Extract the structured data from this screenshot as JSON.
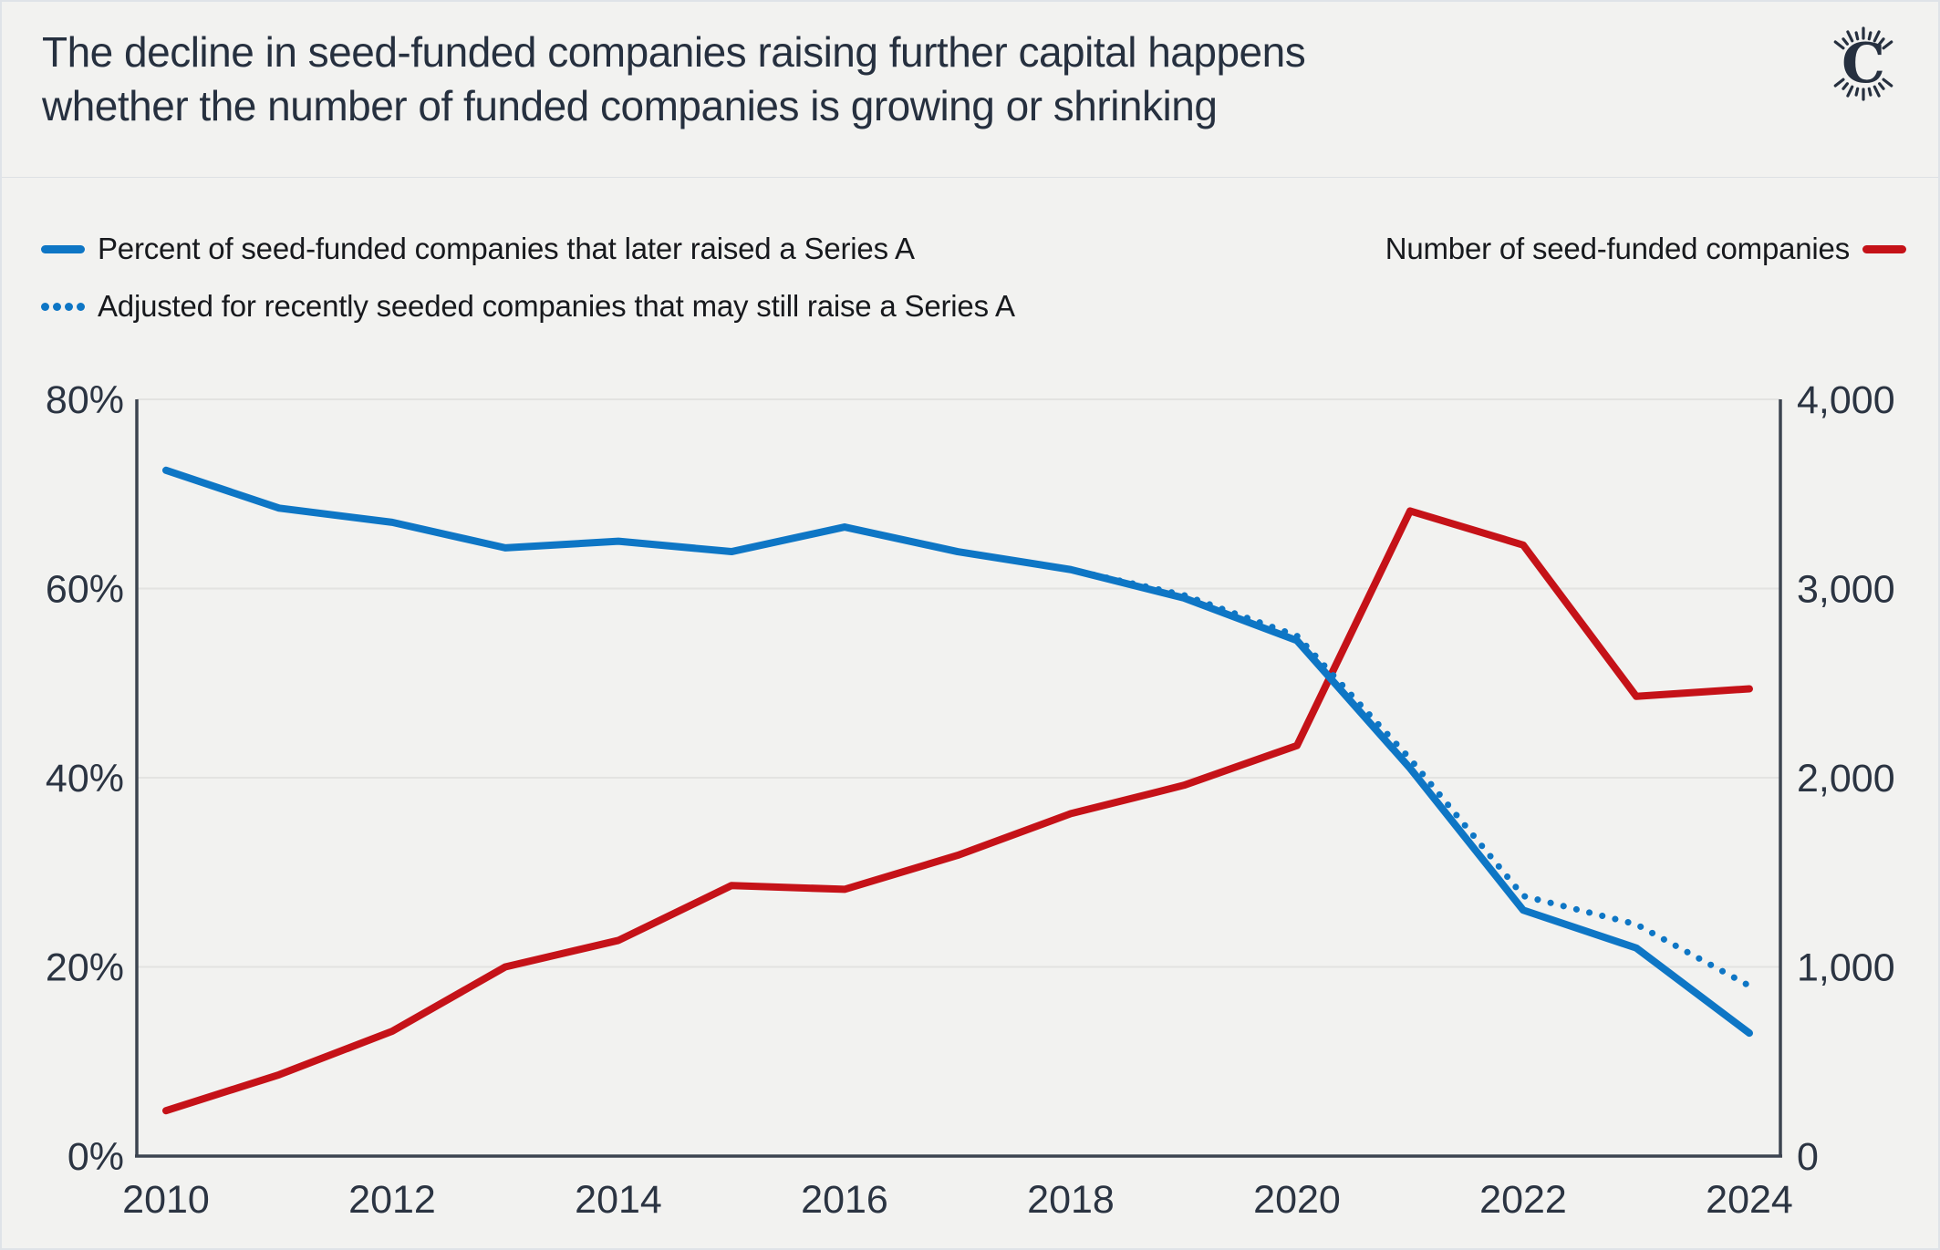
{
  "header": {
    "title_line1": "The decline in seed-funded companies raising further capital happens",
    "title_line2": "whether the number of funded companies is growing or shrinking",
    "logo_glyph": "C"
  },
  "legend": {
    "percent_label": "Percent of seed-funded companies that later raised a Series A",
    "adjusted_label": "Adjusted for recently seeded companies that may still raise a Series A",
    "count_label": "Number of seed-funded companies"
  },
  "colors": {
    "background": "#f2f2f0",
    "blue": "#0e76c5",
    "red": "#c51218",
    "navy_text": "#26303f",
    "tick_text": "#2b3442",
    "legend_text": "#17191d",
    "gridline": "#e3e3e1",
    "axis_line": "#3c4450"
  },
  "chart_data": {
    "type": "line",
    "x": [
      2010,
      2011,
      2012,
      2013,
      2014,
      2015,
      2016,
      2017,
      2018,
      2019,
      2020,
      2021,
      2022,
      2023,
      2024
    ],
    "series": [
      {
        "name": "Percent of seed-funded companies that later raised a Series A",
        "axis": "left",
        "style": "solid",
        "color": "#0e76c5",
        "values": [
          72.5,
          68.5,
          67,
          64.3,
          65,
          63.9,
          66.5,
          63.9,
          62,
          59,
          54.5,
          41,
          26,
          22,
          13
        ]
      },
      {
        "name": "Adjusted for recently seeded companies that may still raise a Series A",
        "axis": "left",
        "style": "dotted",
        "color": "#0e76c5",
        "values": [
          72.5,
          68.5,
          67,
          64.3,
          65,
          63.9,
          66.5,
          63.9,
          62,
          59.3,
          55,
          42,
          27.5,
          24.5,
          18
        ]
      },
      {
        "name": "Number of seed-funded companies",
        "axis": "right",
        "style": "solid",
        "color": "#c51218",
        "values": [
          240,
          430,
          660,
          1000,
          1140,
          1430,
          1410,
          1590,
          1810,
          1960,
          2170,
          3410,
          3230,
          2430,
          2470
        ]
      }
    ],
    "left_axis": {
      "min": 0,
      "max": 80,
      "tick_labels": [
        "0%",
        "20%",
        "40%",
        "60%",
        "80%"
      ]
    },
    "right_axis": {
      "min": 0,
      "max": 4000,
      "tick_labels": [
        "0",
        "1,000",
        "2,000",
        "3,000",
        "4,000"
      ]
    },
    "x_tick_labels": [
      "2010",
      "2012",
      "2014",
      "2016",
      "2018",
      "2020",
      "2022",
      "2024"
    ],
    "x_tick_years": [
      2010,
      2012,
      2014,
      2016,
      2018,
      2020,
      2022,
      2024
    ],
    "grid": true,
    "legend_position": "top"
  }
}
